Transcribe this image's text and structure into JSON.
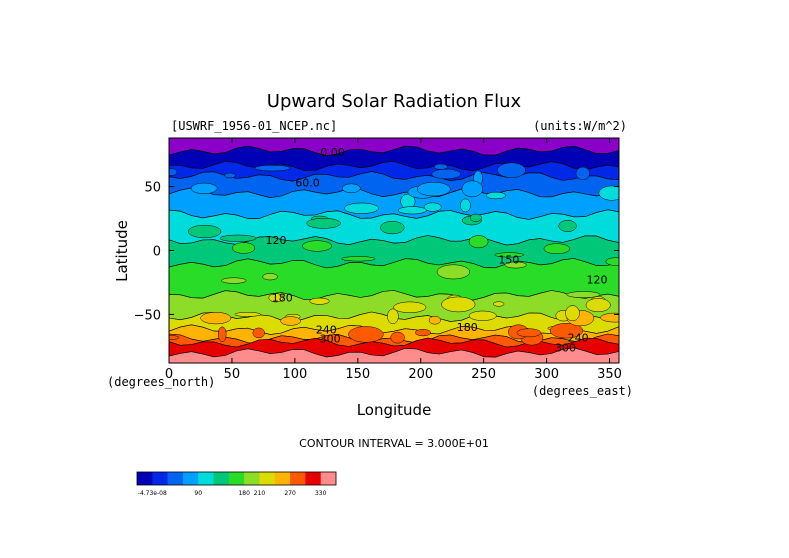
{
  "chart_data": {
    "type": "heatmap",
    "title": "Upward Solar Radiation Flux",
    "source_label": "[USWRF_1956-01_NCEP.nc]",
    "units_label": "(units:W/m^2)",
    "xlabel": "Longitude",
    "ylabel": "Latitude",
    "x_unit_label": "(degrees_east)",
    "y_unit_label": "(degrees_north)",
    "xlim": [
      0,
      357.5
    ],
    "ylim": [
      -88,
      88
    ],
    "x_ticks": [
      "0",
      "50",
      "100",
      "150",
      "200",
      "250",
      "300",
      "350"
    ],
    "y_ticks": [
      "50",
      "0",
      "−50"
    ],
    "x_tick_values": [
      0,
      50,
      100,
      150,
      200,
      250,
      300,
      350
    ],
    "y_tick_values": [
      50,
      0,
      -50
    ],
    "contour_interval_text": "CONTOUR INTERVAL = 3.000E+01",
    "levels": [
      0,
      30,
      60,
      90,
      120,
      150,
      180,
      210,
      240,
      270,
      300,
      330
    ],
    "level_colors": [
      "#0000b4",
      "#0028e6",
      "#0064f0",
      "#00a0ff",
      "#00dcdc",
      "#00c878",
      "#28dc28",
      "#8cdc28",
      "#dcdc00",
      "#ffb400",
      "#ff5a00",
      "#e60000",
      "#ff8c8c"
    ],
    "colorbar_labels": [
      "-4.73e-08",
      "90",
      "180",
      "210",
      "270",
      "330"
    ],
    "colorbar_label_levels": [
      0,
      90,
      180,
      210,
      270,
      330
    ],
    "bands": [
      {
        "lat_from": 88,
        "lat_to": 78,
        "value": 0,
        "color": "#8a00c8"
      },
      {
        "lat_from": 78,
        "lat_to": 66,
        "value": 0,
        "color": "#0000b4"
      },
      {
        "lat_from": 66,
        "lat_to": 58,
        "value": 30,
        "color": "#0028e6"
      },
      {
        "lat_from": 58,
        "lat_to": 45,
        "value": 60,
        "color": "#0064f0"
      },
      {
        "lat_from": 45,
        "lat_to": 28,
        "value": 90,
        "color": "#00a0ff"
      },
      {
        "lat_from": 28,
        "lat_to": 8,
        "value": 120,
        "color": "#00dcdc"
      },
      {
        "lat_from": 8,
        "lat_to": -10,
        "value": 150,
        "color": "#00c878"
      },
      {
        "lat_from": -10,
        "lat_to": -35,
        "value": 150,
        "color": "#28dc28"
      },
      {
        "lat_from": -35,
        "lat_to": -52,
        "value": 180,
        "color": "#8cdc28"
      },
      {
        "lat_from": -52,
        "lat_to": -62,
        "value": 210,
        "color": "#dcdc00"
      },
      {
        "lat_from": -62,
        "lat_to": -69,
        "value": 240,
        "color": "#ffb400"
      },
      {
        "lat_from": -69,
        "lat_to": -72,
        "value": 270,
        "color": "#ff5a00"
      },
      {
        "lat_from": -72,
        "lat_to": -80,
        "value": 300,
        "color": "#e60000"
      },
      {
        "lat_from": -80,
        "lat_to": -88,
        "value": 330,
        "color": "#ff8c8c"
      }
    ],
    "contour_labels": [
      {
        "text": "0.00",
        "lon": 130,
        "lat": 74
      },
      {
        "text": "60.0",
        "lon": 110,
        "lat": 50
      },
      {
        "text": "120",
        "lon": 85,
        "lat": 5
      },
      {
        "text": "120",
        "lon": 340,
        "lat": -26
      },
      {
        "text": "150",
        "lon": 270,
        "lat": -10
      },
      {
        "text": "180",
        "lon": 90,
        "lat": -40
      },
      {
        "text": "240",
        "lon": 125,
        "lat": -65
      },
      {
        "text": "300",
        "lon": 128,
        "lat": -72
      },
      {
        "text": "180",
        "lon": 237,
        "lat": -63
      },
      {
        "text": "240",
        "lon": 325,
        "lat": -71
      },
      {
        "text": "300",
        "lon": 315,
        "lat": -79
      }
    ]
  }
}
